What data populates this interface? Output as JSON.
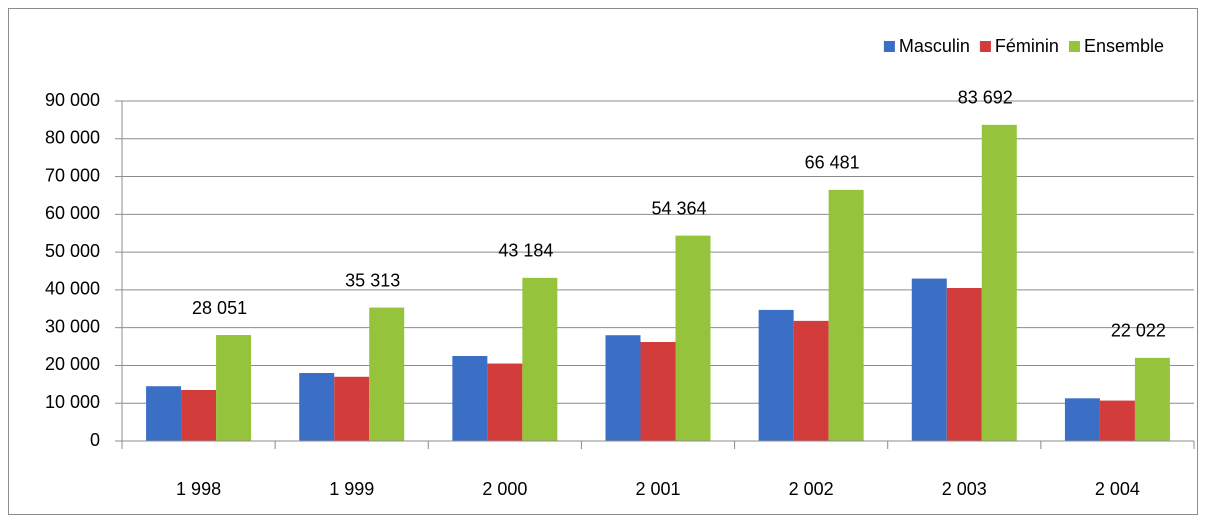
{
  "chart_data": {
    "type": "bar",
    "categories": [
      "1 998",
      "1 999",
      "2 000",
      "2 001",
      "2 002",
      "2 003",
      "2 004"
    ],
    "series": [
      {
        "name": "Masculin",
        "color": "#3b6fc6",
        "values": [
          14500,
          18000,
          22500,
          28000,
          34700,
          43000,
          11300
        ]
      },
      {
        "name": "Féminin",
        "color": "#d23c3a",
        "values": [
          13500,
          17000,
          20500,
          26200,
          31800,
          40500,
          10700
        ]
      },
      {
        "name": "Ensemble",
        "color": "#96c33c",
        "values": [
          28051,
          35313,
          43184,
          54364,
          66481,
          83692,
          22022
        ],
        "value_labels": [
          "28 051",
          "35 313",
          "43 184",
          "54 364",
          "66 481",
          "83 692",
          "22 022"
        ]
      }
    ],
    "ylim": [
      0,
      90000
    ],
    "yticks": [
      0,
      {
        "value": 10000,
        "label": "10 000"
      },
      {
        "value": 20000,
        "label": "20 000"
      },
      {
        "value": 30000,
        "label": "30 000"
      },
      {
        "value": 40000,
        "label": "40 000"
      },
      {
        "value": 50000,
        "label": "50 000"
      },
      {
        "value": 60000,
        "label": "60 000"
      },
      {
        "value": 70000,
        "label": "70 000"
      },
      {
        "value": 80000,
        "label": "80 000"
      },
      {
        "value": 90000,
        "label": "90 000"
      }
    ],
    "grid": true,
    "legend": "top-right"
  }
}
